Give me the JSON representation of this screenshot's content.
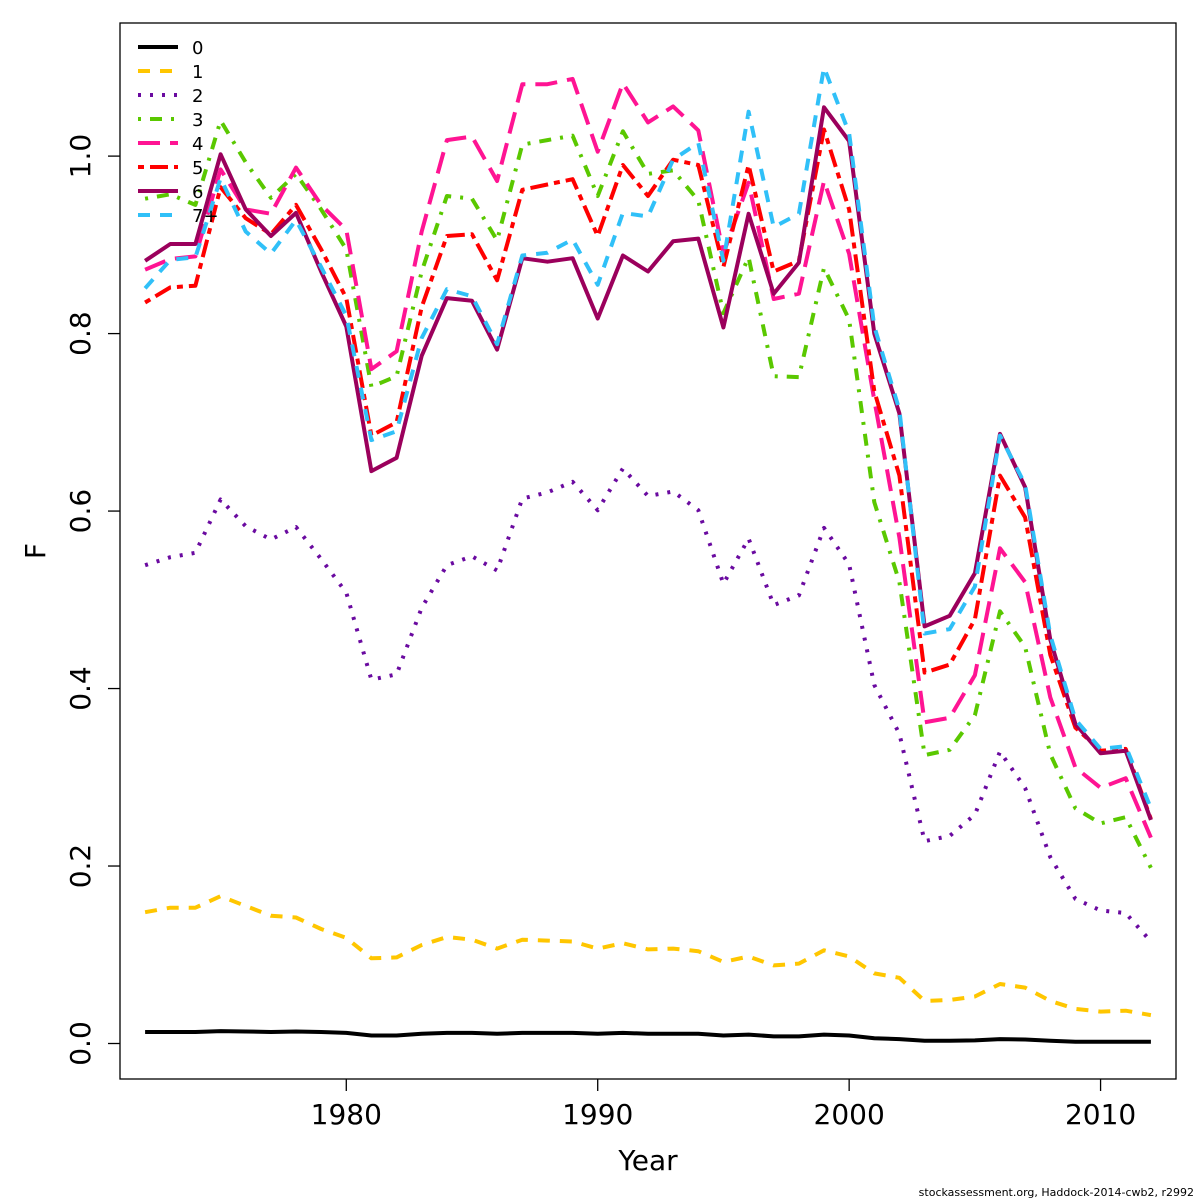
{
  "chart_data": {
    "type": "line",
    "xlabel": "Year",
    "ylabel": "F",
    "xlim": [
      1971,
      2013
    ],
    "ylim": [
      -0.04,
      1.15
    ],
    "x_ticks": [
      1980,
      1990,
      2000,
      2010
    ],
    "y_ticks": [
      0.0,
      0.2,
      0.4,
      0.6,
      0.8,
      1.0
    ],
    "x_tick_labels": [
      "1980",
      "1990",
      "2000",
      "2010"
    ],
    "y_tick_labels": [
      "0.0",
      "0.2",
      "0.4",
      "0.6",
      "0.8",
      "1.0"
    ],
    "grid": false,
    "legend_position": "top-left",
    "x": [
      1972,
      1973,
      1974,
      1975,
      1976,
      1977,
      1978,
      1979,
      1980,
      1981,
      1982,
      1983,
      1984,
      1985,
      1986,
      1987,
      1988,
      1989,
      1990,
      1991,
      1992,
      1993,
      1994,
      1995,
      1996,
      1997,
      1998,
      1999,
      2000,
      2001,
      2002,
      2003,
      2004,
      2005,
      2006,
      2007,
      2008,
      2009,
      2010,
      2011,
      2012
    ],
    "series": [
      {
        "name": "0",
        "color": "#000000",
        "dash": "solid",
        "values": [
          0.013,
          0.013,
          0.013,
          0.014,
          0.0135,
          0.013,
          0.0135,
          0.013,
          0.012,
          0.009,
          0.009,
          0.011,
          0.012,
          0.012,
          0.011,
          0.012,
          0.012,
          0.012,
          0.011,
          0.012,
          0.011,
          0.011,
          0.011,
          0.009,
          0.01,
          0.008,
          0.008,
          0.01,
          0.009,
          0.006,
          0.005,
          0.003,
          0.003,
          0.0035,
          0.005,
          0.0045,
          0.003,
          0.002,
          0.002,
          0.002,
          0.002
        ]
      },
      {
        "name": "1",
        "color": "#ffc600",
        "dash": "dashed",
        "values": [
          0.148,
          0.153,
          0.153,
          0.166,
          0.155,
          0.144,
          0.142,
          0.129,
          0.119,
          0.096,
          0.097,
          0.111,
          0.12,
          0.117,
          0.107,
          0.117,
          0.116,
          0.115,
          0.107,
          0.113,
          0.106,
          0.107,
          0.104,
          0.092,
          0.098,
          0.088,
          0.09,
          0.105,
          0.098,
          0.079,
          0.074,
          0.048,
          0.049,
          0.053,
          0.067,
          0.063,
          0.048,
          0.039,
          0.036,
          0.037,
          0.032
        ]
      },
      {
        "name": "2",
        "color": "#6a0aa0",
        "dash": "dotted",
        "values": [
          0.539,
          0.548,
          0.553,
          0.613,
          0.583,
          0.568,
          0.582,
          0.546,
          0.508,
          0.41,
          0.416,
          0.491,
          0.539,
          0.549,
          0.533,
          0.614,
          0.621,
          0.633,
          0.601,
          0.648,
          0.617,
          0.622,
          0.601,
          0.518,
          0.569,
          0.494,
          0.505,
          0.581,
          0.54,
          0.404,
          0.349,
          0.228,
          0.234,
          0.258,
          0.329,
          0.288,
          0.21,
          0.163,
          0.15,
          0.147,
          0.115
        ]
      },
      {
        "name": "3",
        "color": "#5ac800",
        "dash": "dotdash",
        "values": [
          0.952,
          0.957,
          0.945,
          1.04,
          0.993,
          0.953,
          0.98,
          0.94,
          0.895,
          0.74,
          0.752,
          0.87,
          0.955,
          0.952,
          0.905,
          1.013,
          1.018,
          1.023,
          0.955,
          1.028,
          0.98,
          0.984,
          0.95,
          0.823,
          0.886,
          0.752,
          0.751,
          0.874,
          0.816,
          0.61,
          0.52,
          0.325,
          0.331,
          0.37,
          0.487,
          0.447,
          0.326,
          0.265,
          0.248,
          0.255,
          0.198
        ]
      },
      {
        "name": "4",
        "color": "#ff1493",
        "dash": "longdash",
        "values": [
          0.872,
          0.884,
          0.887,
          0.985,
          0.94,
          0.935,
          0.987,
          0.945,
          0.917,
          0.76,
          0.78,
          0.915,
          1.018,
          1.022,
          0.972,
          1.081,
          1.081,
          1.087,
          1.005,
          1.082,
          1.038,
          1.056,
          1.029,
          0.89,
          0.97,
          0.839,
          0.845,
          0.972,
          0.89,
          0.725,
          0.57,
          0.362,
          0.367,
          0.415,
          0.558,
          0.52,
          0.39,
          0.311,
          0.288,
          0.299,
          0.232
        ]
      },
      {
        "name": "5",
        "color": "#ff0000",
        "dash": "twodash",
        "values": [
          0.835,
          0.852,
          0.854,
          0.965,
          0.93,
          0.912,
          0.945,
          0.895,
          0.84,
          0.685,
          0.7,
          0.83,
          0.91,
          0.912,
          0.86,
          0.962,
          0.968,
          0.974,
          0.91,
          0.99,
          0.955,
          0.996,
          0.99,
          0.875,
          0.99,
          0.87,
          0.882,
          1.03,
          0.94,
          0.735,
          0.64,
          0.418,
          0.427,
          0.478,
          0.64,
          0.593,
          0.438,
          0.356,
          0.33,
          0.332,
          0.253
        ]
      },
      {
        "name": "6",
        "color": "#9b005c",
        "dash": "solid",
        "values": [
          0.882,
          0.901,
          0.901,
          1.002,
          0.94,
          0.91,
          0.936,
          0.87,
          0.808,
          0.645,
          0.66,
          0.775,
          0.84,
          0.837,
          0.782,
          0.885,
          0.881,
          0.885,
          0.817,
          0.888,
          0.87,
          0.904,
          0.907,
          0.807,
          0.935,
          0.845,
          0.88,
          1.055,
          1.017,
          0.8,
          0.71,
          0.47,
          0.482,
          0.53,
          0.687,
          0.627,
          0.455,
          0.36,
          0.327,
          0.33,
          0.252
        ]
      },
      {
        "name": "7+",
        "color": "#30c0f8",
        "dash": "dashed",
        "values": [
          0.851,
          0.883,
          0.886,
          0.975,
          0.915,
          0.89,
          0.928,
          0.875,
          0.82,
          0.68,
          0.69,
          0.795,
          0.85,
          0.842,
          0.788,
          0.888,
          0.891,
          0.906,
          0.855,
          0.936,
          0.932,
          0.996,
          1.015,
          0.882,
          1.05,
          0.92,
          0.935,
          1.1,
          1.026,
          0.808,
          0.714,
          0.462,
          0.467,
          0.515,
          0.685,
          0.63,
          0.46,
          0.365,
          0.332,
          0.335,
          0.265
        ]
      }
    ]
  },
  "footer": {
    "credit": "stockassessment.org, Haddock-2014-cwb2, r2992"
  }
}
